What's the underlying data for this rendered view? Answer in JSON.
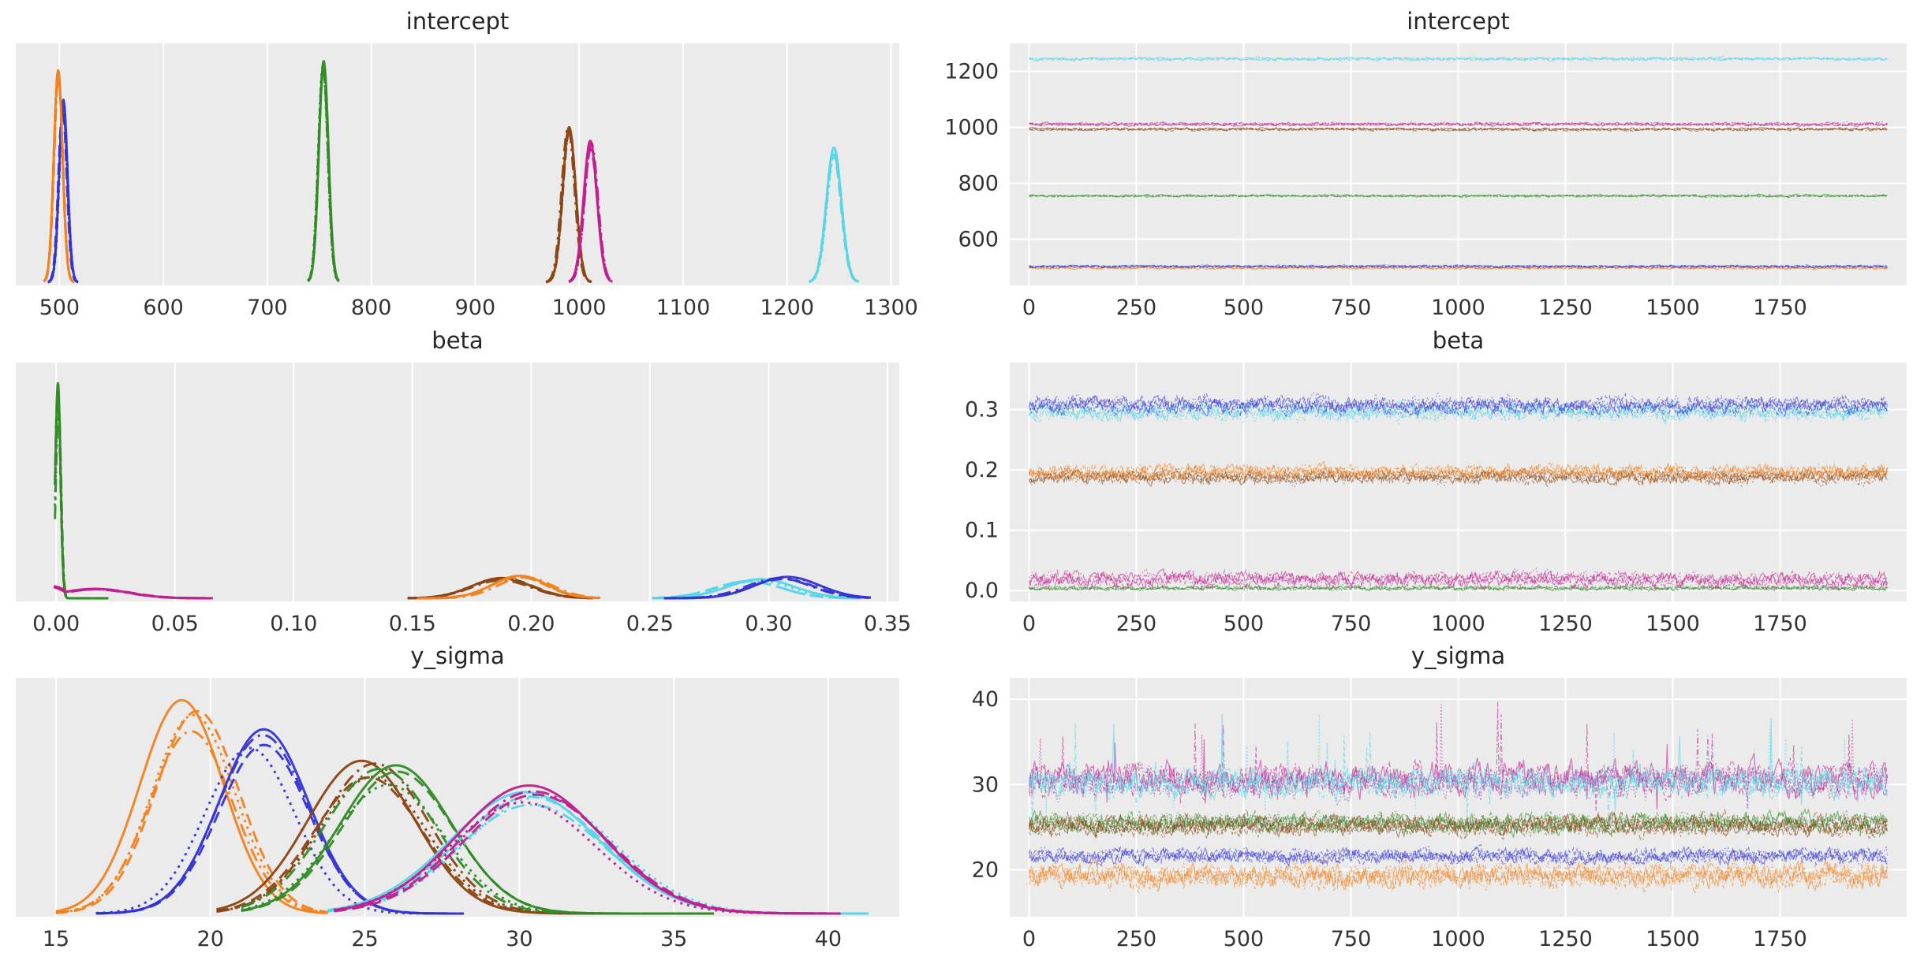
{
  "figure": {
    "background": "#ffffff",
    "axes_background": "#ebebeb",
    "grid_color": "#ffffff",
    "tick_color": "#333333",
    "title_color": "#262626"
  },
  "chart_data": {
    "type": "line",
    "description": "MCMC trace-plot grid: left column = posterior KDE per chain, right column = sampled values per draw",
    "parameters": [
      "intercept",
      "beta",
      "y_sigma"
    ],
    "n_chains": 4,
    "n_draws": 2000,
    "chain_linestyles": [
      "solid",
      "dashed",
      "dotted",
      "dashdot"
    ],
    "palette": {
      "orange": "#f0821e",
      "blue": "#3434d3",
      "green": "#318a26",
      "brown": "#8b4513",
      "magenta": "#c01e8e",
      "cyan": "#56d5e9"
    },
    "plots": [
      {
        "id": "intercept-kde",
        "title": "intercept",
        "kind": "kde",
        "xlim": [
          458,
          1308
        ],
        "xticks": [
          500,
          600,
          700,
          800,
          900,
          1000,
          1100,
          1200,
          1300
        ],
        "xtick_labels": [
          "500",
          "600",
          "700",
          "800",
          "900",
          "1000",
          "1100",
          "1200",
          "1300"
        ],
        "chain_height_spread": 0.06,
        "chain_jitter": 0.12,
        "series": [
          {
            "color": "blue",
            "components": [
              {
                "c": 503.5,
                "sd": 4.0,
                "h": 0.8
              }
            ],
            "range": [
              489,
              518
            ]
          },
          {
            "color": "orange",
            "components": [
              {
                "c": 499.0,
                "sd": 4.2,
                "h": 0.93
              }
            ],
            "range": [
              485,
              514
            ]
          },
          {
            "color": "green",
            "components": [
              {
                "c": 754.0,
                "sd": 4.6,
                "h": 0.97
              }
            ],
            "range": [
              739,
              769
            ]
          },
          {
            "color": "brown",
            "components": [
              {
                "c": 990.0,
                "sd": 6.2,
                "h": 0.68
              }
            ],
            "range": [
              968,
              1012
            ]
          },
          {
            "color": "magenta",
            "components": [
              {
                "c": 1011.0,
                "sd": 6.4,
                "h": 0.62
              }
            ],
            "range": [
              990,
              1032
            ]
          },
          {
            "color": "cyan",
            "components": [
              {
                "c": 1245.0,
                "sd": 7.2,
                "h": 0.59
              }
            ],
            "range": [
              1221,
              1269
            ]
          }
        ]
      },
      {
        "id": "intercept-trace",
        "title": "intercept",
        "kind": "trace",
        "xlim": [
          -45,
          2045
        ],
        "xticks": [
          0,
          250,
          500,
          750,
          1000,
          1250,
          1500,
          1750
        ],
        "xtick_labels": [
          "0",
          "250",
          "500",
          "750",
          "1000",
          "1250",
          "1500",
          "1750"
        ],
        "ylim": [
          435,
          1300
        ],
        "yticks": [
          600,
          800,
          1000,
          1200
        ],
        "ytick_labels": [
          "600",
          "800",
          "1000",
          "1200"
        ],
        "series": [
          {
            "color": "orange",
            "level": 498,
            "amp": 7.0
          },
          {
            "color": "blue",
            "level": 503,
            "amp": 5.5
          },
          {
            "color": "green",
            "level": 755,
            "amp": 5.5
          },
          {
            "color": "brown",
            "level": 993,
            "amp": 7.0
          },
          {
            "color": "magenta",
            "level": 1011,
            "amp": 7.5
          },
          {
            "color": "cyan",
            "level": 1245,
            "amp": 8.0
          }
        ]
      },
      {
        "id": "beta-kde",
        "title": "beta",
        "kind": "kde",
        "xlim": [
          -0.017,
          0.355
        ],
        "xticks": [
          0.0,
          0.05,
          0.1,
          0.15,
          0.2,
          0.25,
          0.3,
          0.35
        ],
        "xtick_labels": [
          "0.00",
          "0.05",
          "0.10",
          "0.15",
          "0.20",
          "0.25",
          "0.30",
          "0.35"
        ],
        "chain_height_spread": 0.12,
        "chain_jitter": 0.2,
        "series": [
          {
            "color": "green",
            "components": [
              {
                "c": 0.0008,
                "sd": 0.0011,
                "h": 0.96
              }
            ],
            "range": [
              -0.0005,
              0.022
            ]
          },
          {
            "color": "magenta",
            "components": [
              {
                "c": -0.002,
                "sd": 0.006,
                "h": 0.055
              },
              {
                "c": 0.017,
                "sd": 0.014,
                "h": 0.042
              }
            ],
            "range": [
              -0.001,
              0.066
            ]
          },
          {
            "color": "brown",
            "components": [
              {
                "c": 0.187,
                "sd": 0.0125,
                "h": 0.09
              }
            ],
            "range": [
              0.148,
              0.226
            ]
          },
          {
            "color": "orange",
            "components": [
              {
                "c": 0.197,
                "sd": 0.0115,
                "h": 0.1
              }
            ],
            "range": [
              0.152,
              0.229
            ]
          },
          {
            "color": "cyan",
            "components": [
              {
                "c": 0.294,
                "sd": 0.014,
                "h": 0.085
              }
            ],
            "range": [
              0.251,
              0.339
            ]
          },
          {
            "color": "blue",
            "components": [
              {
                "c": 0.306,
                "sd": 0.0135,
                "h": 0.095
              }
            ],
            "range": [
              0.256,
              0.343
            ]
          }
        ]
      },
      {
        "id": "beta-trace",
        "title": "beta",
        "kind": "trace",
        "xlim": [
          -45,
          2045
        ],
        "xticks": [
          0,
          250,
          500,
          750,
          1000,
          1250,
          1500,
          1750
        ],
        "xtick_labels": [
          "0",
          "250",
          "500",
          "750",
          "1000",
          "1250",
          "1500",
          "1750"
        ],
        "ylim": [
          -0.018,
          0.378
        ],
        "yticks": [
          0.0,
          0.1,
          0.2,
          0.3
        ],
        "ytick_labels": [
          "0.0",
          "0.1",
          "0.2",
          "0.3"
        ],
        "series": [
          {
            "color": "green",
            "level": 0.004,
            "amp": 0.005
          },
          {
            "color": "magenta",
            "level": 0.018,
            "amp": 0.016
          },
          {
            "color": "brown",
            "level": 0.189,
            "amp": 0.016
          },
          {
            "color": "orange",
            "level": 0.198,
            "amp": 0.015
          },
          {
            "color": "cyan",
            "level": 0.296,
            "amp": 0.019
          },
          {
            "color": "blue",
            "level": 0.307,
            "amp": 0.018
          }
        ]
      },
      {
        "id": "y_sigma-kde",
        "title": "y_sigma",
        "kind": "kde",
        "xlim": [
          13.7,
          42.3
        ],
        "xticks": [
          15,
          20,
          25,
          30,
          35,
          40
        ],
        "xtick_labels": [
          "15",
          "20",
          "25",
          "30",
          "35",
          "40"
        ],
        "chain_height_spread": 0.15,
        "chain_jitter": 0.25,
        "series": [
          {
            "color": "orange",
            "components": [
              {
                "c": 19.4,
                "sd": 1.35,
                "h": 0.95
              }
            ],
            "range": [
              15.0,
              23.8
            ]
          },
          {
            "color": "blue",
            "components": [
              {
                "c": 21.4,
                "sd": 1.45,
                "h": 0.82
              }
            ],
            "range": [
              16.3,
              28.2
            ]
          },
          {
            "color": "brown",
            "components": [
              {
                "c": 25.0,
                "sd": 1.75,
                "h": 0.68
              }
            ],
            "range": [
              20.2,
              33.6
            ]
          },
          {
            "color": "green",
            "components": [
              {
                "c": 25.8,
                "sd": 1.8,
                "h": 0.66
              }
            ],
            "range": [
              21.0,
              36.3
            ]
          },
          {
            "color": "cyan",
            "components": [
              {
                "c": 30.2,
                "sd": 2.4,
                "h": 0.54
              }
            ],
            "range": [
              23.8,
              41.3
            ]
          },
          {
            "color": "magenta",
            "components": [
              {
                "c": 30.4,
                "sd": 2.35,
                "h": 0.57
              }
            ],
            "range": [
              24.0,
              40.4
            ]
          }
        ]
      },
      {
        "id": "y_sigma-trace",
        "title": "y_sigma",
        "kind": "trace",
        "xlim": [
          -45,
          2045
        ],
        "xticks": [
          0,
          250,
          500,
          750,
          1000,
          1250,
          1500,
          1750
        ],
        "xtick_labels": [
          "0",
          "250",
          "500",
          "750",
          "1000",
          "1250",
          "1500",
          "1750"
        ],
        "ylim": [
          14.5,
          42.5
        ],
        "yticks": [
          20,
          30,
          40
        ],
        "ytick_labels": [
          "20",
          "30",
          "40"
        ],
        "series": [
          {
            "color": "orange",
            "level": 19.3,
            "amp": 1.8
          },
          {
            "color": "blue",
            "level": 21.7,
            "amp": 1.2
          },
          {
            "color": "green",
            "level": 25.5,
            "amp": 1.7
          },
          {
            "color": "brown",
            "level": 25.2,
            "amp": 1.7
          },
          {
            "color": "magenta",
            "level": 30.6,
            "amp": 2.6,
            "spikes": true
          },
          {
            "color": "cyan",
            "level": 30.3,
            "amp": 2.4,
            "spikes": true
          }
        ]
      }
    ]
  }
}
